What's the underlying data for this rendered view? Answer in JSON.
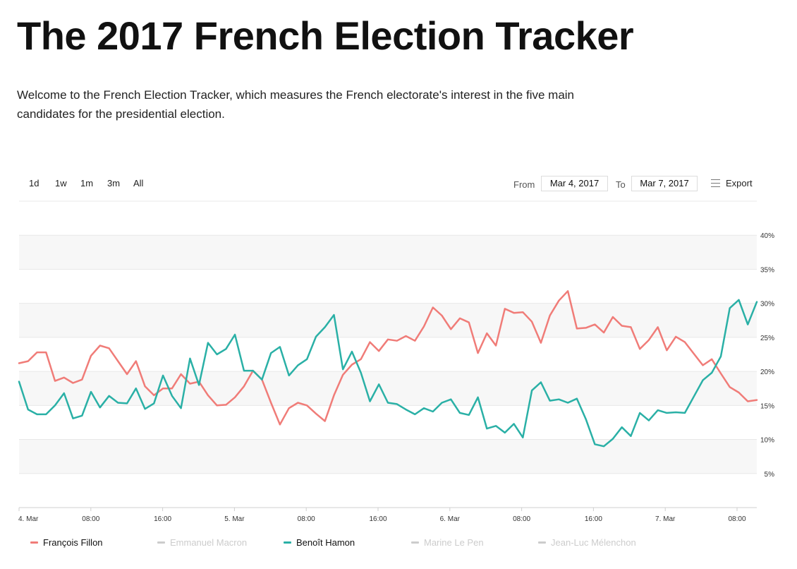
{
  "header": {
    "title": "The 2017 French Election Tracker",
    "intro": "Welcome to the French Election Tracker, which measures the French electorate's interest in the five main candidates for the presidential election."
  },
  "toolbar": {
    "ranges": [
      "1d",
      "1w",
      "1m",
      "3m",
      "All"
    ],
    "from_label": "From",
    "from_value": "Mar 4, 2017",
    "to_label": "To",
    "to_value": "Mar 7, 2017",
    "export_label": "Export"
  },
  "colors": {
    "fillon": "#f07c78",
    "hamon": "#2ab0a6",
    "inactive": "#cccccc",
    "band": "#f7f7f7",
    "grid": "#e8e8e8",
    "axis_text": "#333333"
  },
  "chart_data": {
    "type": "line",
    "title": "The 2017 French Election Tracker",
    "xlabel": "",
    "ylabel": "",
    "ylim": [
      0,
      45
    ],
    "x_tick_labels": [
      "4. Mar",
      "08:00",
      "16:00",
      "5. Mar",
      "08:00",
      "16:00",
      "6. Mar",
      "08:00",
      "16:00",
      "7. Mar",
      "08:00"
    ],
    "x_tick_hours": [
      0,
      8,
      16,
      24,
      32,
      40,
      48,
      56,
      64,
      72,
      80
    ],
    "x_range_hours": [
      0,
      82.2
    ],
    "y_ticks": [
      5,
      10,
      15,
      20,
      25,
      30,
      35,
      40
    ],
    "y_tick_labels": [
      "5%",
      "10%",
      "15%",
      "20%",
      "25%",
      "30%",
      "35%",
      "40%"
    ],
    "series": [
      {
        "name": "François Fillon",
        "visible": true,
        "color": "#f07c78",
        "values": [
          21.2,
          21.5,
          22.8,
          22.8,
          18.6,
          19.1,
          18.3,
          18.8,
          22.3,
          23.8,
          23.4,
          21.5,
          19.6,
          21.5,
          17.8,
          16.5,
          17.5,
          17.5,
          19.6,
          18.2,
          18.5,
          16.5,
          15.0,
          15.1,
          16.2,
          17.8,
          20.1,
          18.8,
          15.4,
          12.2,
          14.6,
          15.4,
          15.0,
          13.8,
          12.7,
          16.5,
          19.5,
          21.0,
          21.8,
          24.3,
          23.0,
          24.7,
          24.5,
          25.2,
          24.5,
          26.6,
          29.4,
          28.2,
          26.2,
          27.8,
          27.2,
          22.7,
          25.6,
          23.8,
          29.2,
          28.6,
          28.7,
          27.3,
          24.2,
          28.2,
          30.4,
          31.8,
          26.3,
          26.4,
          26.9,
          25.7,
          28.0,
          26.7,
          26.5,
          23.3,
          24.6,
          26.5,
          23.1,
          25.1,
          24.3,
          22.6,
          20.9,
          21.8,
          19.7,
          17.7,
          16.9,
          15.6,
          15.8
        ]
      },
      {
        "name": "Emmanuel Macron",
        "visible": false,
        "color": "#cccccc"
      },
      {
        "name": "Benoît Hamon",
        "visible": true,
        "color": "#2ab0a6",
        "values": [
          18.5,
          14.4,
          13.7,
          13.7,
          15.0,
          16.8,
          13.1,
          13.5,
          17.0,
          14.7,
          16.4,
          15.4,
          15.3,
          17.5,
          14.5,
          15.3,
          19.4,
          16.4,
          14.6,
          21.9,
          18.0,
          24.2,
          22.5,
          23.3,
          25.4,
          20.1,
          20.1,
          18.8,
          22.7,
          23.6,
          19.4,
          20.9,
          21.8,
          25.1,
          26.5,
          28.3,
          20.3,
          22.9,
          19.8,
          15.6,
          18.1,
          15.4,
          15.2,
          14.4,
          13.7,
          14.6,
          14.1,
          15.4,
          15.9,
          13.9,
          13.6,
          16.2,
          11.6,
          12.0,
          11.0,
          12.3,
          10.3,
          17.2,
          18.4,
          15.7,
          15.9,
          15.4,
          16.0,
          13.0,
          9.3,
          9.0,
          10.1,
          11.8,
          10.5,
          13.9,
          12.8,
          14.3,
          13.9,
          14.0,
          13.9,
          16.3,
          18.7,
          19.8,
          22.2,
          29.3,
          30.5,
          26.9,
          30.2
        ]
      },
      {
        "name": "Marine Le Pen",
        "visible": false,
        "color": "#cccccc"
      },
      {
        "name": "Jean-Luc Mélenchon",
        "visible": false,
        "color": "#cccccc"
      }
    ]
  }
}
